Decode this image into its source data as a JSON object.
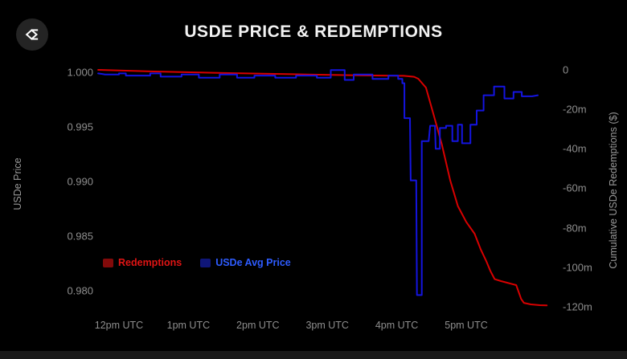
{
  "title": "USDE PRICE & REDEMPTIONS",
  "logo": {
    "icon": "ethena-sigma-logo"
  },
  "left_axis": {
    "label": "USDe Price",
    "ticks": [
      {
        "label": "1.000",
        "value": 1.0
      },
      {
        "label": "0.995",
        "value": 0.995
      },
      {
        "label": "0.990",
        "value": 0.99
      },
      {
        "label": "0.985",
        "value": 0.985
      },
      {
        "label": "0.980",
        "value": 0.98
      }
    ]
  },
  "right_axis": {
    "label": "Cumulative USDe Redemptions ($)",
    "ticks": [
      {
        "label": "0",
        "value": 0
      },
      {
        "label": "-20m",
        "value": -20
      },
      {
        "label": "-40m",
        "value": -40
      },
      {
        "label": "-60m",
        "value": -60
      },
      {
        "label": "-80m",
        "value": -80
      },
      {
        "label": "-100m",
        "value": -100
      },
      {
        "label": "-120m",
        "value": -120
      }
    ]
  },
  "x_axis": {
    "ticks": [
      {
        "label": "12pm UTC",
        "hour": 12
      },
      {
        "label": "1pm UTC",
        "hour": 13
      },
      {
        "label": "2pm UTC",
        "hour": 14
      },
      {
        "label": "3pm UTC",
        "hour": 15
      },
      {
        "label": "4pm UTC",
        "hour": 16
      },
      {
        "label": "5pm UTC",
        "hour": 17
      }
    ]
  },
  "legend": [
    {
      "label": "Redemptions",
      "color": "#e01414",
      "swatch": "rgba(200,16,16,0.65)"
    },
    {
      "label": "USDe Avg Price",
      "color": "#2e5cff",
      "swatch": "rgba(20,30,160,0.75)"
    }
  ],
  "colors": {
    "background": "#000000",
    "redemptions_line": "#d80000",
    "price_line": "#1414e0",
    "tick_text": "#8e8e8e",
    "title_text": "#f2f2f2"
  },
  "chart_data": {
    "type": "line",
    "title": "USDE PRICE & REDEMPTIONS",
    "x_unit": "utc_hour_decimal",
    "x_range": [
      11.7,
      18.16
    ],
    "left_axis": {
      "label": "USDe Price",
      "range": [
        0.98,
        1.0
      ]
    },
    "right_axis": {
      "label": "Cumulative USDe Redemptions ($)",
      "range": [
        -120,
        0
      ],
      "unit": "million_usd"
    },
    "grid": false,
    "legend_position": "lower-left",
    "series": [
      {
        "name": "Redemptions",
        "axis": "right",
        "color": "#d80000",
        "style": "smooth",
        "points": [
          [
            11.7,
            0
          ],
          [
            12.5,
            -0.8
          ],
          [
            13.5,
            -1.6
          ],
          [
            14.5,
            -2.2
          ],
          [
            15.5,
            -2.8
          ],
          [
            16.1,
            -3.0
          ],
          [
            16.25,
            -3.5
          ],
          [
            16.31,
            -4.5
          ],
          [
            16.42,
            -9
          ],
          [
            16.54,
            -24
          ],
          [
            16.65,
            -38
          ],
          [
            16.77,
            -56
          ],
          [
            16.88,
            -69
          ],
          [
            17.0,
            -77
          ],
          [
            17.12,
            -83
          ],
          [
            17.21,
            -91
          ],
          [
            17.29,
            -97
          ],
          [
            17.35,
            -102
          ],
          [
            17.41,
            -106
          ],
          [
            17.5,
            -107
          ],
          [
            17.61,
            -108
          ],
          [
            17.72,
            -109
          ],
          [
            17.75,
            -112
          ],
          [
            17.79,
            -116
          ],
          [
            17.83,
            -118
          ],
          [
            17.93,
            -118.8
          ],
          [
            18.06,
            -119.2
          ],
          [
            18.16,
            -119.3
          ]
        ]
      },
      {
        "name": "USDe Avg Price",
        "axis": "left",
        "color": "#1414e0",
        "style": "step",
        "points": [
          [
            11.7,
            0.9999
          ],
          [
            11.8,
            0.9998
          ],
          [
            12.0,
            0.9998
          ],
          [
            12.0,
            0.9999
          ],
          [
            12.1,
            0.9999
          ],
          [
            12.1,
            0.9997
          ],
          [
            12.45,
            0.9997
          ],
          [
            12.45,
            0.9999
          ],
          [
            12.6,
            0.9999
          ],
          [
            12.6,
            0.9996
          ],
          [
            12.9,
            0.9996
          ],
          [
            12.9,
            0.9998
          ],
          [
            13.15,
            0.9998
          ],
          [
            13.15,
            0.9995
          ],
          [
            13.45,
            0.9995
          ],
          [
            13.45,
            0.9998
          ],
          [
            13.7,
            0.9998
          ],
          [
            13.7,
            0.9995
          ],
          [
            13.95,
            0.9995
          ],
          [
            13.95,
            0.9997
          ],
          [
            14.25,
            0.9997
          ],
          [
            14.25,
            0.9995
          ],
          [
            14.55,
            0.9995
          ],
          [
            14.55,
            0.9997
          ],
          [
            14.85,
            0.9997
          ],
          [
            14.85,
            0.9995
          ],
          [
            15.05,
            0.9995
          ],
          [
            15.05,
            1.0002
          ],
          [
            15.25,
            1.0002
          ],
          [
            15.25,
            0.9993
          ],
          [
            15.38,
            0.9993
          ],
          [
            15.38,
            0.9998
          ],
          [
            15.65,
            0.9998
          ],
          [
            15.65,
            0.9994
          ],
          [
            15.88,
            0.9994
          ],
          [
            15.88,
            0.9997
          ],
          [
            16.02,
            0.9997
          ],
          [
            16.02,
            0.9994
          ],
          [
            16.08,
            0.9994
          ],
          [
            16.08,
            0.999
          ],
          [
            16.11,
            0.999
          ],
          [
            16.11,
            0.9958
          ],
          [
            16.19,
            0.9958
          ],
          [
            16.2,
            0.9901
          ],
          [
            16.28,
            0.9901
          ],
          [
            16.29,
            0.9796
          ],
          [
            16.36,
            0.9796
          ],
          [
            16.36,
            0.9937
          ],
          [
            16.46,
            0.9937
          ],
          [
            16.48,
            0.9951
          ],
          [
            16.55,
            0.9951
          ],
          [
            16.56,
            0.993
          ],
          [
            16.62,
            0.993
          ],
          [
            16.62,
            0.9949
          ],
          [
            16.71,
            0.9949
          ],
          [
            16.71,
            0.9951
          ],
          [
            16.8,
            0.9951
          ],
          [
            16.8,
            0.9937
          ],
          [
            16.88,
            0.9937
          ],
          [
            16.88,
            0.9952
          ],
          [
            16.94,
            0.9952
          ],
          [
            16.94,
            0.9935
          ],
          [
            17.06,
            0.9935
          ],
          [
            17.06,
            0.9952
          ],
          [
            17.15,
            0.9952
          ],
          [
            17.15,
            0.9965
          ],
          [
            17.25,
            0.9965
          ],
          [
            17.25,
            0.9979
          ],
          [
            17.4,
            0.9979
          ],
          [
            17.4,
            0.9987
          ],
          [
            17.55,
            0.9987
          ],
          [
            17.55,
            0.9976
          ],
          [
            17.68,
            0.9976
          ],
          [
            17.68,
            0.9982
          ],
          [
            17.8,
            0.9982
          ],
          [
            17.8,
            0.9978
          ],
          [
            17.95,
            0.9978
          ],
          [
            18.03,
            0.9979
          ]
        ]
      }
    ]
  }
}
